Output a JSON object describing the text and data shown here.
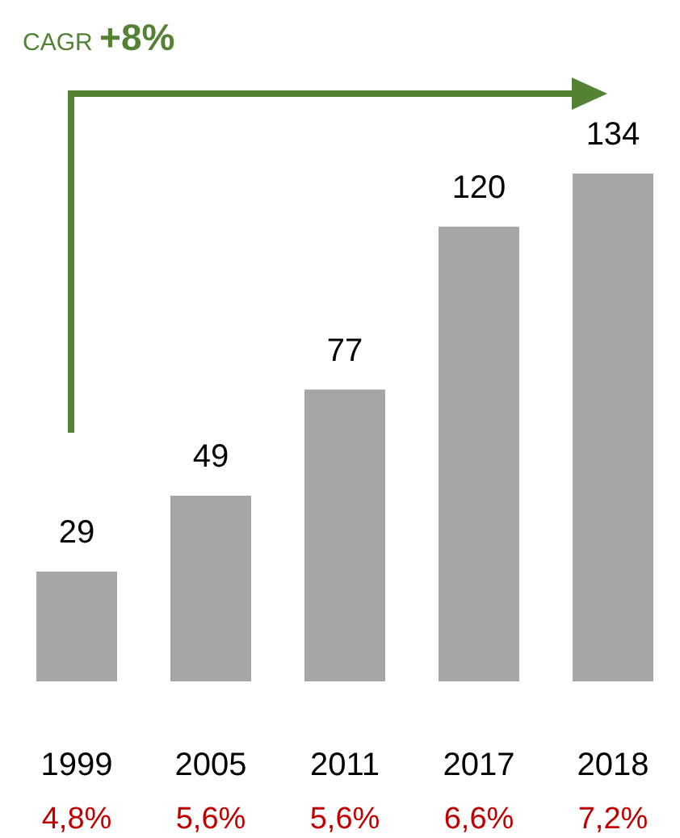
{
  "chart_data": {
    "type": "bar",
    "categories": [
      "1999",
      "2005",
      "2011",
      "2017",
      "2018"
    ],
    "values": [
      29,
      49,
      77,
      120,
      134
    ],
    "color": "#a6a6a6",
    "data_labels": true,
    "annotations": [
      "CAGR +8%",
      "4,8%",
      "5,6%",
      "5,6%",
      "6,6%",
      "7,2%"
    ]
  }
}
